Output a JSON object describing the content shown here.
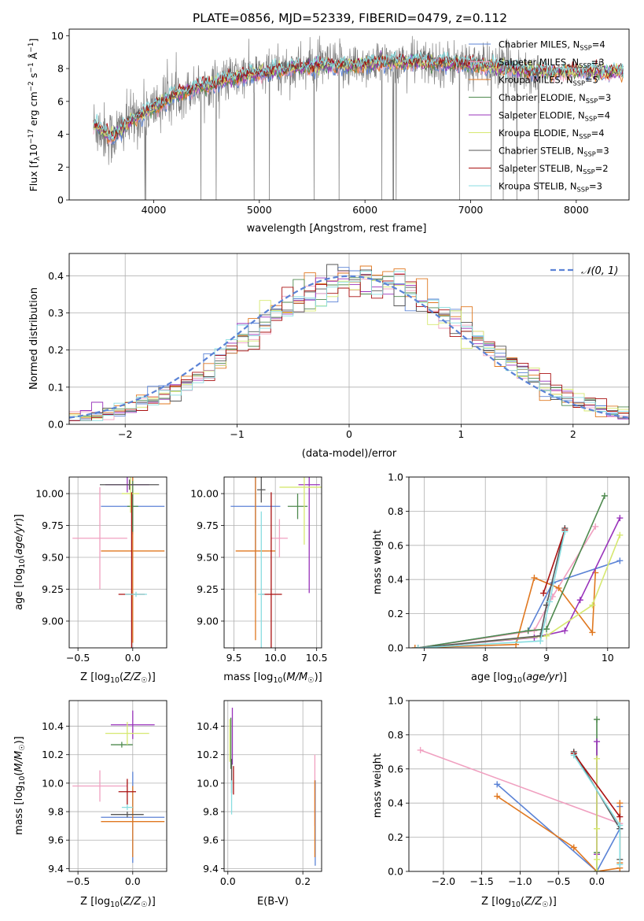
{
  "title": "PLATE=0856, MJD=52339, FIBERID=0479, z=0.112",
  "model_colors": {
    "Chabrier MILES": "#5b83d6",
    "Salpeter MILES": "#f0a0c0",
    "Kroupa MILES": "#e07820",
    "Chabrier ELODIE": "#4f8a4f",
    "Salpeter ELODIE": "#9933bb",
    "Kroupa ELODIE": "#d6e870",
    "Chabrier STELIB": "#555555",
    "Salpeter STELIB": "#aa1111",
    "Kroupa STELIB": "#88dde0"
  },
  "chart_data": [
    {
      "type": "line",
      "xlabel": "wavelength [Angstrom, rest frame]",
      "ylabel": "Flux [f_λ 10⁻¹⁷ erg cm⁻² s⁻¹ Å⁻¹]",
      "xlim": [
        3200,
        8500
      ],
      "ylim": [
        0,
        10.4
      ],
      "xticks": [
        4000,
        5000,
        6000,
        7000,
        8000
      ],
      "yticks": [
        0,
        2,
        4,
        6,
        8,
        10
      ],
      "grid": false,
      "legend": "top-right",
      "legend_entries": [
        {
          "label": "Chabrier MILES, N",
          "sub": "SSP",
          "tail": "=4",
          "model": "Chabrier MILES"
        },
        {
          "label": "Salpeter MILES, N",
          "sub": "SSP",
          "tail": "=3",
          "model": "Salpeter MILES"
        },
        {
          "label": "Kroupa MILES, N",
          "sub": "SSP",
          "tail": "=5",
          "model": "Kroupa MILES"
        },
        {
          "label": "Chabrier ELODIE, N",
          "sub": "SSP",
          "tail": "=3",
          "model": "Chabrier ELODIE"
        },
        {
          "label": "Salpeter ELODIE, N",
          "sub": "SSP",
          "tail": "=4",
          "model": "Salpeter ELODIE"
        },
        {
          "label": "Kroupa ELODIE, N",
          "sub": "SSP",
          "tail": "=4",
          "model": "Kroupa ELODIE"
        },
        {
          "label": "Chabrier STELIB, N",
          "sub": "SSP",
          "tail": "=3",
          "model": "Chabrier STELIB"
        },
        {
          "label": "Salpeter STELIB, N",
          "sub": "SSP",
          "tail": "=2",
          "model": "Salpeter STELIB"
        },
        {
          "label": "Kroupa STELIB, N",
          "sub": "SSP",
          "tail": "=3",
          "model": "Kroupa STELIB"
        }
      ],
      "data_trend": {
        "x": [
          3430,
          3600,
          3800,
          4000,
          4200,
          4500,
          4800,
          5000,
          5300,
          5600,
          5900,
          6200,
          6500,
          6800,
          7100,
          7400,
          7600
        ],
        "y": [
          4.6,
          3.8,
          4.9,
          5.6,
          6.4,
          7.0,
          7.5,
          7.7,
          8.0,
          8.2,
          8.2,
          8.4,
          8.4,
          8.3,
          8.2,
          8.0,
          7.8
        ]
      },
      "data_extended": {
        "x": [
          7600,
          8000,
          8400
        ],
        "y": [
          7.8,
          7.7,
          7.6
        ]
      }
    },
    {
      "type": "bar",
      "subtype": "step-histogram",
      "xlabel": "(data-model)/error",
      "ylabel": "Normed distribution",
      "xlim": [
        -2.5,
        2.5
      ],
      "ylim": [
        0,
        0.46
      ],
      "xticks": [
        -2,
        -1,
        0,
        1,
        2
      ],
      "yticks": [
        0.0,
        0.1,
        0.2,
        0.3,
        0.4
      ],
      "grid": true,
      "legend": "top-right",
      "gaussian_label": "𝒩(0, 1)",
      "bin_width": 0.1
    },
    {
      "type": "scatter",
      "subtype": "error-bars",
      "xlabel": "Z [log10(Z/Z☉)]",
      "ylabel": "age  [log10(age/yr)]",
      "xlim": [
        -0.58,
        0.31
      ],
      "ylim": [
        8.79,
        10.13
      ],
      "xticks": [
        -0.5,
        0.0
      ],
      "yticks": [
        9.0,
        9.25,
        9.5,
        9.75,
        10.0
      ],
      "grid": true,
      "points": [
        {
          "model": "Chabrier MILES",
          "x": 0.0,
          "xerr": 0.29,
          "y": 9.9,
          "yerr": 0.22
        },
        {
          "model": "Salpeter MILES",
          "x": -0.3,
          "xerr": 0.25,
          "y": 9.65,
          "yerr": 0.4
        },
        {
          "model": "Kroupa MILES",
          "x": 0.0,
          "xerr": 0.29,
          "y": 9.55,
          "yerr": 0.72
        },
        {
          "model": "Chabrier ELODIE",
          "x": 0.0,
          "xerr": 0.05,
          "y": 9.9,
          "yerr": 0.2
        },
        {
          "model": "Salpeter ELODIE",
          "x": -0.05,
          "xerr": 0.2,
          "y": 10.07,
          "yerr": 0.06
        },
        {
          "model": "Kroupa ELODIE",
          "x": -0.02,
          "xerr": 0.08,
          "y": 10.0,
          "yerr": 0.15
        },
        {
          "model": "Chabrier STELIB",
          "x": -0.03,
          "xerr": 0.27,
          "y": 10.07,
          "yerr": 0.04
        },
        {
          "model": "Salpeter STELIB",
          "x": -0.01,
          "xerr": 0.12,
          "y": 9.21,
          "yerr": 0.8
        },
        {
          "model": "Kroupa STELIB",
          "x": 0.03,
          "xerr": 0.1,
          "y": 9.21,
          "yerr": 0.02
        }
      ]
    },
    {
      "type": "scatter",
      "subtype": "error-bars",
      "xlabel": "mass [log10(M/M☉)]",
      "xlim": [
        9.38,
        10.56
      ],
      "ylim": [
        8.79,
        10.13
      ],
      "xticks": [
        9.5,
        10.0,
        10.5
      ],
      "yticks": [
        9.0,
        9.25,
        9.5,
        9.75,
        10.0
      ],
      "grid": true,
      "points": [
        {
          "model": "Chabrier MILES",
          "x": 9.76,
          "xerr": 0.3,
          "y": 9.9,
          "yerr": 0.68
        },
        {
          "model": "Salpeter MILES",
          "x": 10.05,
          "xerr": 0.1,
          "y": 9.65,
          "yerr": 0.15
        },
        {
          "model": "Kroupa MILES",
          "x": 9.76,
          "xerr": 0.24,
          "y": 9.55,
          "yerr": 0.7
        },
        {
          "model": "Chabrier ELODIE",
          "x": 10.27,
          "xerr": 0.12,
          "y": 9.9,
          "yerr": 0.1
        },
        {
          "model": "Salpeter ELODIE",
          "x": 10.41,
          "xerr": 0.13,
          "y": 10.07,
          "yerr": 0.85
        },
        {
          "model": "Kroupa ELODIE",
          "x": 10.35,
          "xerr": 0.3,
          "y": 10.05,
          "yerr": 0.45
        },
        {
          "model": "Chabrier STELIB",
          "x": 9.83,
          "xerr": 0.05,
          "y": 10.03,
          "yerr": 0.1
        },
        {
          "model": "Salpeter STELIB",
          "x": 9.95,
          "xerr": 0.13,
          "y": 9.21,
          "yerr": 0.8
        },
        {
          "model": "Kroupa STELIB",
          "x": 9.83,
          "xerr": 0.04,
          "y": 9.21,
          "yerr": 0.65
        }
      ]
    },
    {
      "type": "line",
      "xlabel": "age  [log10(age/yr)]",
      "ylabel": "mass weight",
      "xlim": [
        6.75,
        10.35
      ],
      "ylim": [
        0,
        1.0
      ],
      "xticks": [
        7,
        8,
        9,
        10
      ],
      "yticks": [
        0.0,
        0.2,
        0.4,
        0.6,
        0.8,
        1.0
      ],
      "grid": true,
      "series": [
        {
          "model": "Chabrier MILES",
          "x": [
            6.9,
            8.7,
            9.1,
            10.2
          ],
          "y": [
            0.0,
            0.1,
            0.38,
            0.51
          ]
        },
        {
          "model": "Salpeter MILES",
          "x": [
            6.9,
            8.8,
            9.1,
            9.8
          ],
          "y": [
            0.0,
            0.1,
            0.3,
            0.71
          ]
        },
        {
          "model": "Kroupa MILES",
          "x": [
            6.85,
            8.5,
            8.8,
            9.2,
            9.75,
            9.8
          ],
          "y": [
            0.0,
            0.02,
            0.41,
            0.35,
            0.09,
            0.44
          ]
        },
        {
          "model": "Chabrier ELODIE",
          "x": [
            6.9,
            8.7,
            9.0,
            9.95
          ],
          "y": [
            0.0,
            0.1,
            0.11,
            0.89
          ]
        },
        {
          "model": "Salpeter ELODIE",
          "x": [
            6.9,
            8.8,
            9.3,
            9.55,
            10.2
          ],
          "y": [
            0.0,
            0.06,
            0.1,
            0.28,
            0.76
          ]
        },
        {
          "model": "Kroupa ELODIE",
          "x": [
            6.9,
            9.0,
            9.75,
            10.2
          ],
          "y": [
            0.0,
            0.07,
            0.25,
            0.66
          ]
        },
        {
          "model": "Chabrier STELIB",
          "x": [
            6.9,
            8.9,
            9.0,
            9.3
          ],
          "y": [
            0.0,
            0.07,
            0.25,
            0.7
          ]
        },
        {
          "model": "Salpeter STELIB",
          "x": [
            8.95,
            9.3
          ],
          "y": [
            0.32,
            0.69
          ]
        },
        {
          "model": "Kroupa STELIB",
          "x": [
            6.9,
            8.9,
            9.05,
            9.3
          ],
          "y": [
            0.0,
            0.04,
            0.27,
            0.68
          ]
        }
      ]
    },
    {
      "type": "scatter",
      "subtype": "error-bars",
      "xlabel": "Z [log10(Z/Z☉)]",
      "ylabel": "mass [log10(M/M☉)]",
      "xlim": [
        -0.58,
        0.31
      ],
      "ylim": [
        9.38,
        10.58
      ],
      "xticks": [
        -0.5,
        0.0
      ],
      "yticks": [
        9.4,
        9.6,
        9.8,
        10.0,
        10.2,
        10.4
      ],
      "grid": true,
      "points": [
        {
          "model": "Chabrier MILES",
          "x": 0.0,
          "xerr": 0.29,
          "y": 9.76,
          "yerr": 0.32
        },
        {
          "model": "Salpeter MILES",
          "x": -0.3,
          "xerr": 0.25,
          "y": 9.98,
          "yerr": 0.11
        },
        {
          "model": "Kroupa MILES",
          "x": 0.0,
          "xerr": 0.29,
          "y": 9.73,
          "yerr": 0.25
        },
        {
          "model": "Chabrier ELODIE",
          "x": -0.1,
          "xerr": 0.1,
          "y": 10.27,
          "yerr": 0.02
        },
        {
          "model": "Salpeter ELODIE",
          "x": 0.0,
          "xerr": 0.2,
          "y": 10.41,
          "yerr": 0.1
        },
        {
          "model": "Kroupa ELODIE",
          "x": -0.05,
          "xerr": 0.2,
          "y": 10.35,
          "yerr": 0.08
        },
        {
          "model": "Chabrier STELIB",
          "x": -0.05,
          "xerr": 0.15,
          "y": 9.78,
          "yerr": 0.02
        },
        {
          "model": "Salpeter STELIB",
          "x": -0.05,
          "xerr": 0.08,
          "y": 9.94,
          "yerr": 0.09
        },
        {
          "model": "Kroupa STELIB",
          "x": -0.05,
          "xerr": 0.05,
          "y": 9.83,
          "yerr": 0.02
        }
      ]
    },
    {
      "type": "scatter",
      "subtype": "error-bars",
      "xlabel": "E(B-V)",
      "xlim": [
        -0.01,
        0.25
      ],
      "ylim": [
        9.38,
        10.58
      ],
      "xticks": [
        0.0,
        0.2
      ],
      "yticks": [
        9.4,
        9.6,
        9.8,
        10.0,
        10.2,
        10.4
      ],
      "grid": true,
      "points": [
        {
          "model": "Chabrier MILES",
          "x": 0.233,
          "yerr": 0.3,
          "y": 9.72
        },
        {
          "model": "Salpeter MILES",
          "x": 0.232,
          "yerr": 0.25,
          "y": 9.95
        },
        {
          "model": "Kroupa MILES",
          "x": 0.232,
          "yerr": 0.27,
          "y": 9.75
        },
        {
          "model": "Chabrier ELODIE",
          "x": 0.008,
          "yerr": 0.18,
          "y": 10.28
        },
        {
          "model": "Salpeter ELODIE",
          "x": 0.012,
          "yerr": 0.2,
          "y": 10.33
        },
        {
          "model": "Kroupa ELODIE",
          "x": 0.005,
          "yerr": 0.15,
          "y": 10.3
        },
        {
          "model": "Chabrier STELIB",
          "x": 0.01,
          "yerr": 0.12,
          "y": 10.05
        },
        {
          "model": "Salpeter STELIB",
          "x": 0.015,
          "yerr": 0.1,
          "y": 10.02
        },
        {
          "model": "Kroupa STELIB",
          "x": 0.01,
          "yerr": 0.12,
          "y": 9.9
        }
      ]
    },
    {
      "type": "line",
      "xlabel": "Z [log10(Z/Z☉)]",
      "ylabel": "mass weight",
      "xlim": [
        -2.45,
        0.42
      ],
      "ylim": [
        0,
        1.0
      ],
      "xticks": [
        -2.0,
        -1.5,
        -1.0,
        -0.5,
        0.0
      ],
      "yticks": [
        0.0,
        0.2,
        0.4,
        0.6,
        0.8,
        1.0
      ],
      "grid": true,
      "series": [
        {
          "model": "Chabrier MILES",
          "x": [
            -1.3,
            0.0,
            0.3,
            0.3
          ],
          "y": [
            0.51,
            0.0,
            0.25,
            0.38
          ]
        },
        {
          "model": "Salpeter MILES",
          "x": [
            -2.3,
            0.3
          ],
          "y": [
            0.71,
            0.28
          ]
        },
        {
          "model": "Kroupa MILES",
          "x": [
            -1.3,
            -0.3,
            0.0,
            0.3,
            0.3,
            0.3
          ],
          "y": [
            0.44,
            0.14,
            0.0,
            0.02,
            0.05,
            0.4
          ]
        },
        {
          "model": "Chabrier ELODIE",
          "x": [
            0.0,
            0.0,
            0.0
          ],
          "y": [
            0.0,
            0.11,
            0.89
          ]
        },
        {
          "model": "Salpeter ELODIE",
          "x": [
            0.0,
            0.0
          ],
          "y": [
            0.1,
            0.76
          ]
        },
        {
          "model": "Kroupa ELODIE",
          "x": [
            0.0,
            0.0,
            0.0,
            0.0
          ],
          "y": [
            0.0,
            0.07,
            0.25,
            0.66
          ]
        },
        {
          "model": "Chabrier STELIB",
          "x": [
            -0.3,
            0.3,
            0.3
          ],
          "y": [
            0.7,
            0.25,
            0.07
          ]
        },
        {
          "model": "Salpeter STELIB",
          "x": [
            -0.3,
            0.3
          ],
          "y": [
            0.69,
            0.32
          ]
        },
        {
          "model": "Kroupa STELIB",
          "x": [
            -0.3,
            0.3,
            0.3
          ],
          "y": [
            0.68,
            0.27,
            0.04
          ]
        }
      ]
    }
  ]
}
